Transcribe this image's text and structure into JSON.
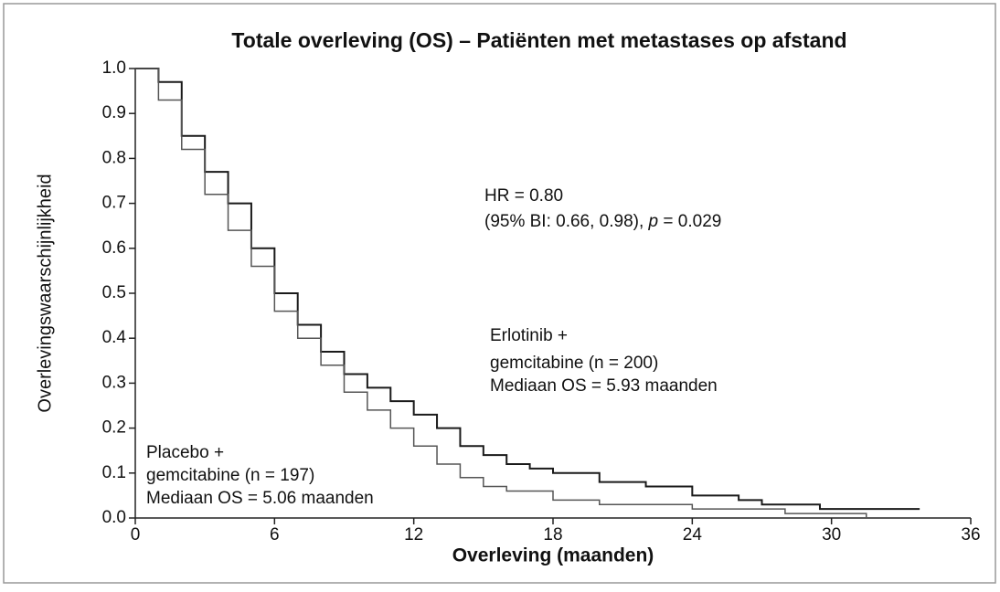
{
  "chart_data": {
    "type": "line",
    "step": true,
    "title": "Totale overleving (OS) – Patiënten met metastases op afstand",
    "x_label": "Overleving (maanden)",
    "y_label": "Overlevingswaarschijnlijkheid",
    "xlim": [
      0,
      36
    ],
    "xticks": [
      0,
      6,
      12,
      18,
      24,
      30,
      36
    ],
    "ylim": [
      0,
      1
    ],
    "yticks": [
      {
        "value": 0,
        "label": "0.0"
      },
      0.1,
      0.2,
      0.3,
      0.4,
      0.5,
      0.6,
      0.7,
      0.8,
      0.9,
      {
        "value": 1,
        "label": "1.0"
      }
    ],
    "grid": false,
    "series": [
      {
        "color": "#1a1a1a",
        "x": [
          0,
          1,
          2,
          3,
          4,
          5,
          6,
          7,
          8,
          9,
          10,
          11,
          12,
          13,
          14,
          15,
          16,
          17,
          18,
          20,
          22,
          24,
          26,
          27,
          29.5,
          33.8
        ],
        "values": [
          1.0,
          0.97,
          0.85,
          0.77,
          0.7,
          0.6,
          0.5,
          0.43,
          0.37,
          0.32,
          0.29,
          0.26,
          0.23,
          0.2,
          0.16,
          0.14,
          0.12,
          0.11,
          0.1,
          0.08,
          0.07,
          0.05,
          0.04,
          0.03,
          0.02,
          0.02
        ]
      },
      {
        "color": "#555555",
        "x": [
          0,
          1,
          2,
          3,
          4,
          5,
          6,
          7,
          8,
          9,
          10,
          11,
          12,
          13,
          14,
          15,
          16,
          18,
          20,
          24,
          28,
          31.5
        ],
        "values": [
          1.0,
          0.93,
          0.82,
          0.72,
          0.64,
          0.56,
          0.46,
          0.4,
          0.34,
          0.28,
          0.24,
          0.2,
          0.16,
          0.12,
          0.09,
          0.07,
          0.06,
          0.04,
          0.03,
          0.02,
          0.01,
          0.0
        ]
      }
    ],
    "annotations": {
      "hr": "HR = 0.80",
      "ci": "(95% BI: 0.66, 0.98), ",
      "p": "p",
      "p_value": " = 0.029",
      "erlotinib": [
        "Erlotinib +",
        "gemcitabine (n = 200)",
        "Mediaan OS = 5.93 maanden"
      ],
      "placebo": [
        "Placebo +",
        "gemcitabine (n = 197)",
        "Mediaan OS = 5.06 maanden"
      ]
    }
  }
}
